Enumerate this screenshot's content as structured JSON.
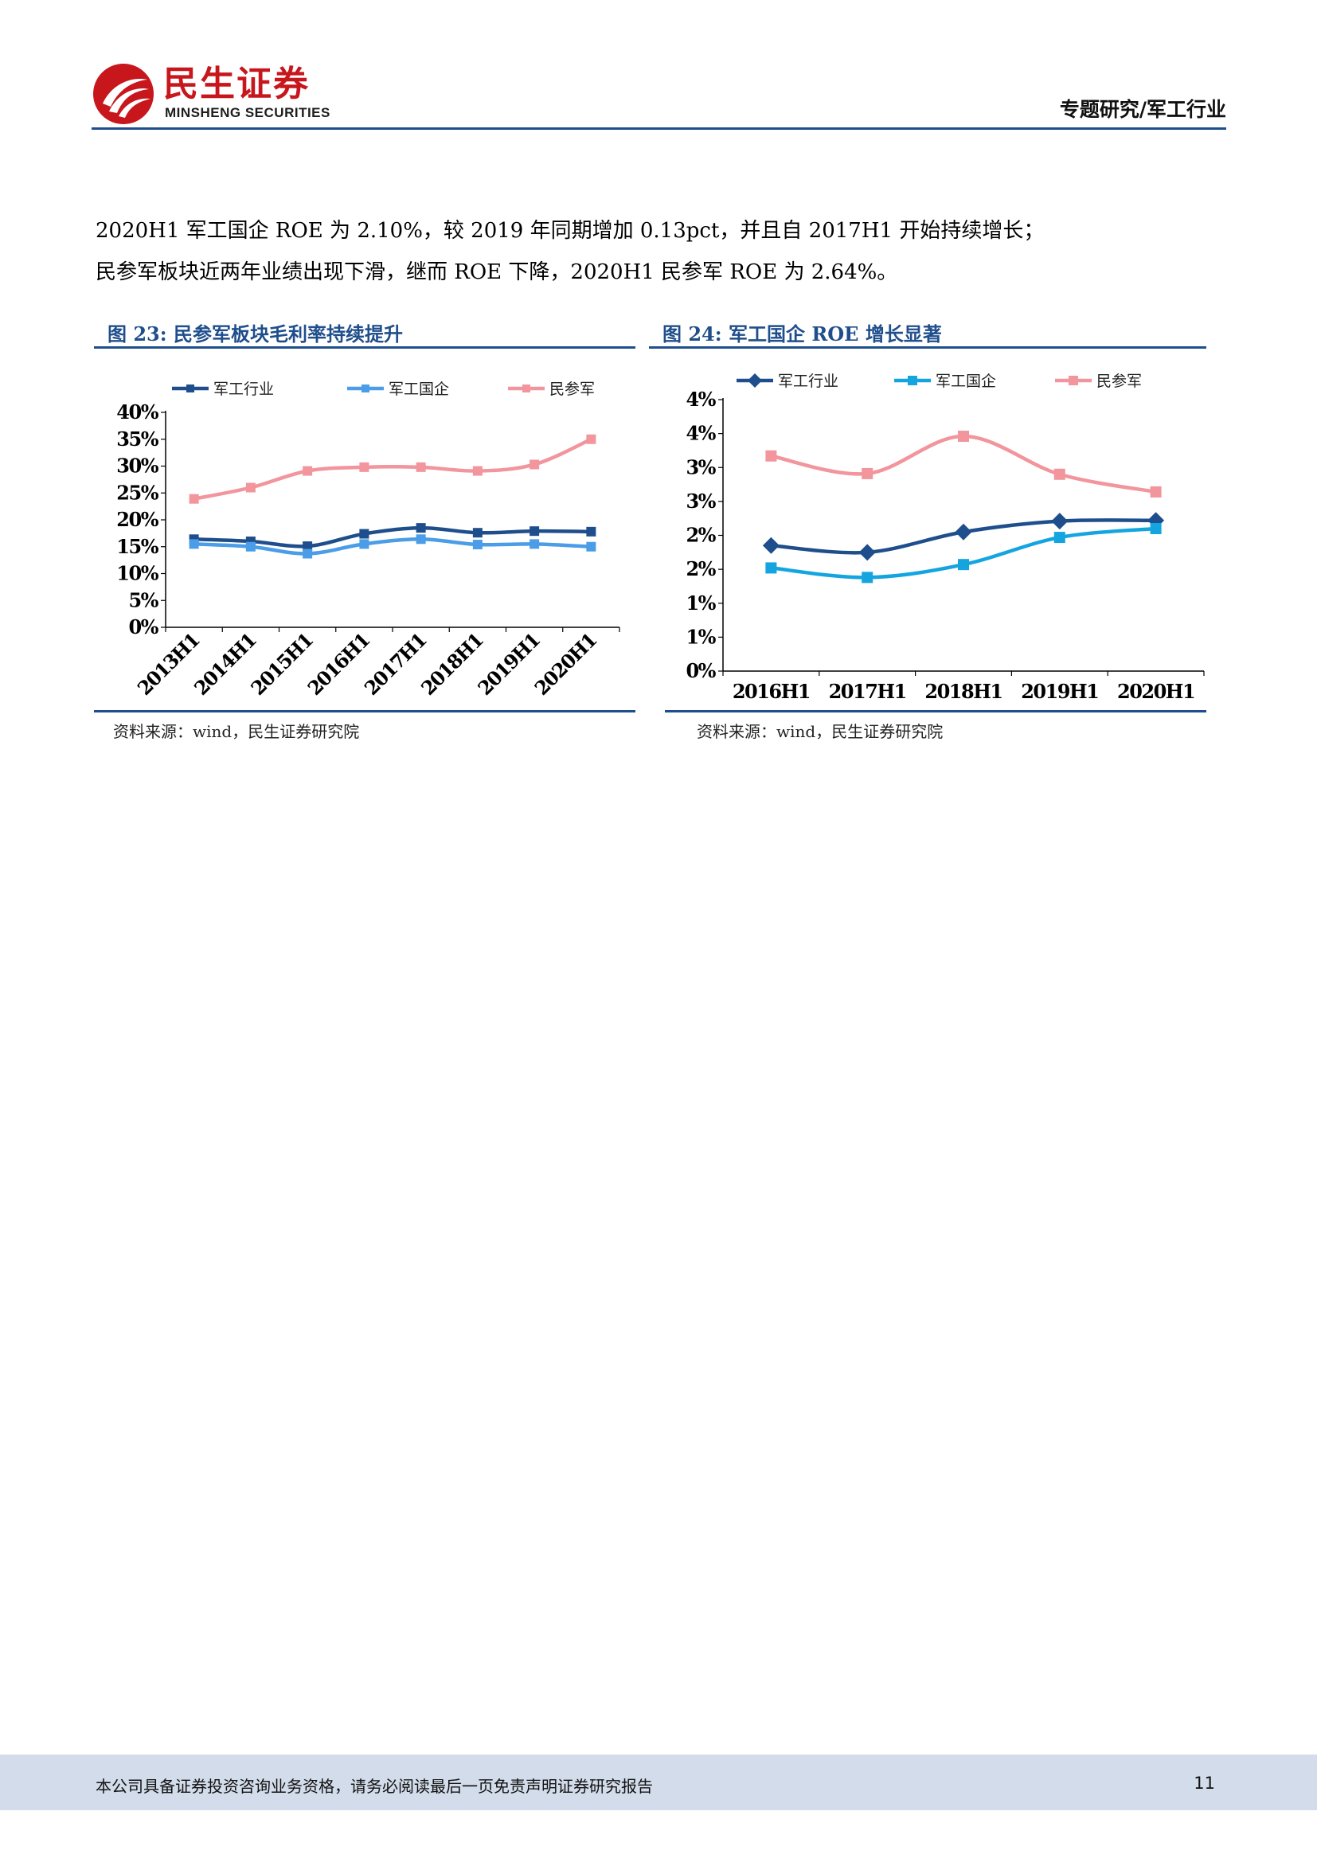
{
  "header": {
    "logo_cn": "民生证券",
    "logo_en": "MINSHENG SECURITIES",
    "section": "专题研究/军工行业"
  },
  "body": {
    "line1": "2020H1 军工国企 ROE 为 2.10%，较 2019 年同期增加 0.13pct，并且自 2017H1 开始持续增长；",
    "line2": "民参军板块近两年业绩出现下滑，继而 ROE 下降，2020H1 民参军 ROE 为 2.64%。"
  },
  "figure23": {
    "title": "图 23:  民参军板块毛利率持续提升",
    "source": "资料来源：wind，民生证券研究院"
  },
  "figure24": {
    "title": "图 24:  军工国企 ROE 增长显著",
    "source": "资料来源：wind，民生证券研究院"
  },
  "chart_data": [
    {
      "type": "line",
      "title": "",
      "xlabel": "",
      "ylabel": "",
      "x": [
        "2013H1",
        "2014H1",
        "2015H1",
        "2016H1",
        "2017H1",
        "2018H1",
        "2019H1",
        "2020H1"
      ],
      "yticks": [
        "0%",
        "5%",
        "10%",
        "15%",
        "20%",
        "25%",
        "30%",
        "35%",
        "40%"
      ],
      "ylim": [
        0,
        40
      ],
      "legend_position": "top",
      "series": [
        {
          "name": "军工行业",
          "color": "#1f4e8c",
          "marker": "square",
          "values": [
            16.4,
            16.0,
            15.1,
            17.4,
            18.5,
            17.6,
            17.9,
            17.8
          ]
        },
        {
          "name": "军工国企",
          "color": "#4a9de6",
          "marker": "square",
          "values": [
            15.5,
            15.0,
            13.7,
            15.5,
            16.4,
            15.4,
            15.5,
            15.0
          ]
        },
        {
          "name": "民参军",
          "color": "#f2959c",
          "marker": "square",
          "values": [
            23.9,
            26.0,
            29.1,
            29.8,
            29.8,
            29.1,
            30.3,
            35.0
          ]
        }
      ]
    },
    {
      "type": "line",
      "title": "",
      "xlabel": "",
      "ylabel": "",
      "x": [
        "2016H1",
        "2017H1",
        "2018H1",
        "2019H1",
        "2020H1"
      ],
      "yticks": [
        "0%",
        "1%",
        "1%",
        "2%",
        "2%",
        "3%",
        "3%",
        "4%",
        "4%"
      ],
      "ylim": [
        0,
        4
      ],
      "legend_position": "top",
      "series": [
        {
          "name": "军工行业",
          "color": "#1f4e8c",
          "marker": "diamond",
          "values": [
            1.85,
            1.75,
            2.05,
            2.21,
            2.22
          ]
        },
        {
          "name": "军工国企",
          "color": "#14a5e0",
          "marker": "square",
          "values": [
            1.52,
            1.38,
            1.57,
            1.97,
            2.1
          ]
        },
        {
          "name": "民参军",
          "color": "#f2959c",
          "marker": "square",
          "values": [
            3.17,
            2.91,
            3.46,
            2.9,
            2.64
          ]
        }
      ]
    }
  ]
}
